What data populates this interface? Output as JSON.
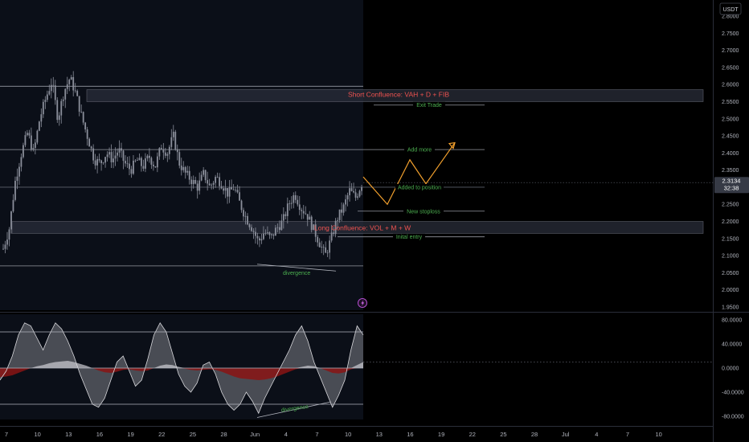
{
  "currency_label": "USDT",
  "price_label": "2.3134",
  "countdown_label": "32:38",
  "annotations": {
    "short_confluence": "Short Confluence: VAH + D + FIB",
    "long_confluence": "Long Confluence: VOL + M + W",
    "exit_trade": "Exit Trade",
    "add_more": "Add more",
    "added_to_position": "Added to position",
    "new_stoploss": "New stoploss",
    "initial_entry": "Inital entry",
    "divergence_price": "divergence",
    "divergence_osc": "divergence"
  },
  "colors": {
    "background": "#000000",
    "history_shade": "#0b0f18",
    "candle": "#8b8f9b",
    "zone_fill": "#2a2e39",
    "projection": "#f2a02d",
    "label_green": "#4caf50",
    "label_red": "#ef5350",
    "osc_dark": "#8a1414",
    "osc_gray": "#7d7f86",
    "osc_light": "#cfcfd4"
  },
  "lightning_icon": "lightning-icon",
  "chart_data": [
    {
      "type": "candlestick",
      "title": "",
      "xlabel": "",
      "ylabel": "",
      "x_ticks": [
        "7",
        "10",
        "13",
        "16",
        "19",
        "22",
        "25",
        "28",
        "Jun",
        "4",
        "7",
        "10",
        "13",
        "16",
        "19",
        "22",
        "25",
        "28",
        "Jul",
        "4",
        "7",
        "10"
      ],
      "y_ticks": [
        "2.8000",
        "2.7500",
        "2.7000",
        "2.6500",
        "2.6000",
        "2.5500",
        "2.5000",
        "2.4500",
        "2.4000",
        "2.3500",
        "2.3000",
        "2.2500",
        "2.2000",
        "2.1500",
        "2.1000",
        "2.0500",
        "2.0000",
        "1.9500"
      ],
      "ylim": [
        1.95,
        2.82
      ],
      "price_path": [
        2.12,
        2.18,
        2.32,
        2.4,
        2.46,
        2.4,
        2.5,
        2.56,
        2.61,
        2.5,
        2.58,
        2.62,
        2.57,
        2.5,
        2.44,
        2.38,
        2.37,
        2.4,
        2.38,
        2.41,
        2.37,
        2.35,
        2.38,
        2.36,
        2.39,
        2.36,
        2.42,
        2.4,
        2.45,
        2.37,
        2.34,
        2.32,
        2.3,
        2.34,
        2.3,
        2.33,
        2.31,
        2.28,
        2.3,
        2.25,
        2.21,
        2.18,
        2.14,
        2.17,
        2.15,
        2.18,
        2.2,
        2.25,
        2.28,
        2.24,
        2.22,
        2.18,
        2.14,
        2.1,
        2.15,
        2.21,
        2.24,
        2.29,
        2.27,
        2.31
      ],
      "levels": {
        "upper_line": 2.595,
        "short_zone": [
          2.55,
          2.585
        ],
        "exit_trade": 2.54,
        "add_more": 2.41,
        "added_to_position": 2.3,
        "new_stoploss": 2.23,
        "long_zone": [
          2.165,
          2.2
        ],
        "initial_entry": 2.155,
        "lower_line": 2.07,
        "current_price": 2.3134
      },
      "projection_path": [
        2.33,
        2.25,
        2.38,
        2.31,
        2.43
      ],
      "divergence_line": [
        2.075,
        2.055
      ]
    },
    {
      "type": "area",
      "title": "",
      "y_ticks": [
        "80.0000",
        "40.0000",
        "0.0000",
        "-40.0000",
        "-80.0000"
      ],
      "ylim": [
        -95,
        100
      ],
      "levels": [
        60,
        0,
        -60
      ],
      "dotted_level": 10,
      "series": [
        {
          "values": [
            -20,
            -5,
            20,
            55,
            75,
            70,
            50,
            30,
            55,
            75,
            65,
            45,
            20,
            -10,
            -35,
            -60,
            -65,
            -50,
            -20,
            10,
            20,
            -5,
            -30,
            -20,
            15,
            55,
            75,
            60,
            25,
            -10,
            -30,
            -40,
            -25,
            5,
            10,
            -10,
            -40,
            -60,
            -70,
            -60,
            -40,
            -55,
            -75,
            -50,
            -30,
            -10,
            10,
            30,
            55,
            70,
            45,
            10,
            -15,
            -40,
            -65,
            -45,
            -20,
            30,
            70,
            55
          ]
        },
        {
          "values": [
            -15,
            -14,
            -12,
            -8,
            -4,
            0,
            3,
            5,
            8,
            10,
            11,
            12,
            10,
            7,
            4,
            0,
            -4,
            -7,
            -8,
            -6,
            -3,
            -2,
            -4,
            -5,
            -4,
            0,
            4,
            6,
            5,
            2,
            -1,
            -3,
            -4,
            -3,
            -2,
            -3,
            -6,
            -10,
            -14,
            -17,
            -18,
            -19,
            -20,
            -19,
            -17,
            -14,
            -10,
            -6,
            -2,
            2,
            4,
            3,
            0,
            -4,
            -8,
            -9,
            -7,
            -2,
            5,
            10
          ]
        }
      ]
    }
  ]
}
